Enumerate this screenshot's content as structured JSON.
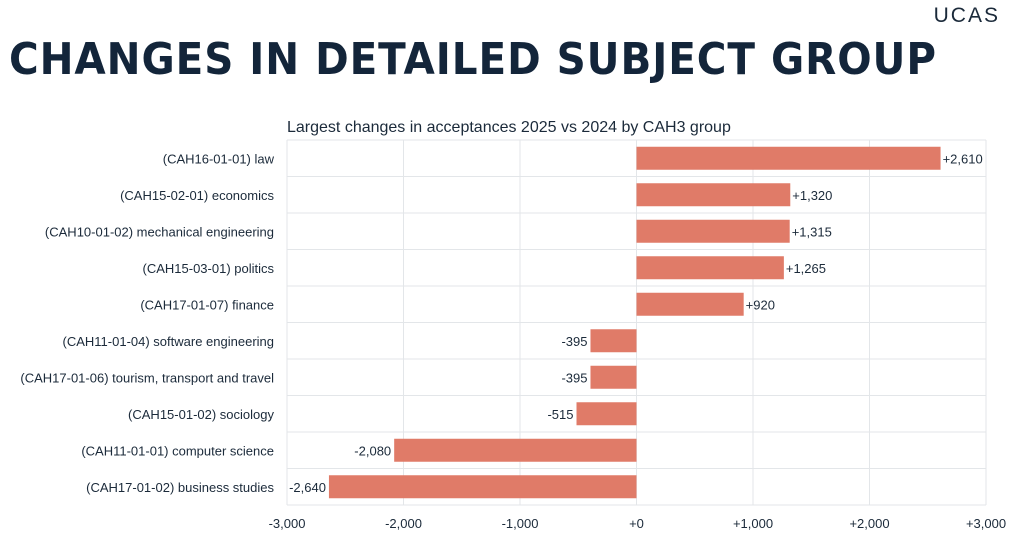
{
  "brand": {
    "logo_text": "UCAS"
  },
  "header": {
    "title": "CHANGES IN DETAILED SUBJECT GROUP"
  },
  "colors": {
    "bar": "#e07b68",
    "grid": "#e3e6e9",
    "text": "#1b2a3a"
  },
  "chart_data": {
    "type": "bar",
    "orientation": "horizontal",
    "title": "Largest changes in acceptances 2025 vs 2024 by CAH3 group",
    "xlabel": "",
    "ylabel": "",
    "xlim": [
      -3000,
      3000
    ],
    "xticks": [
      -3000,
      -2000,
      -1000,
      0,
      1000,
      2000,
      3000
    ],
    "xtick_labels": [
      "-3,000",
      "-2,000",
      "-1,000",
      "+0",
      "+1,000",
      "+2,000",
      "+3,000"
    ],
    "categories": [
      "(CAH16-01-01) law",
      "(CAH15-02-01) economics",
      "(CAH10-01-02) mechanical engineering",
      "(CAH15-03-01) politics",
      "(CAH17-01-07) finance",
      "(CAH11-01-04) software engineering",
      "(CAH17-01-06) tourism, transport and travel",
      "(CAH15-01-02) sociology",
      "(CAH11-01-01) computer science",
      "(CAH17-01-02) business studies"
    ],
    "values": [
      2610,
      1320,
      1315,
      1265,
      920,
      -395,
      -395,
      -515,
      -2080,
      -2640
    ],
    "data_labels": [
      "+2,610",
      "+1,320",
      "+1,315",
      "+1,265",
      "+920",
      "-395",
      "-395",
      "-515",
      "-2,080",
      "-2,640"
    ],
    "grid": true,
    "legend": "none"
  }
}
